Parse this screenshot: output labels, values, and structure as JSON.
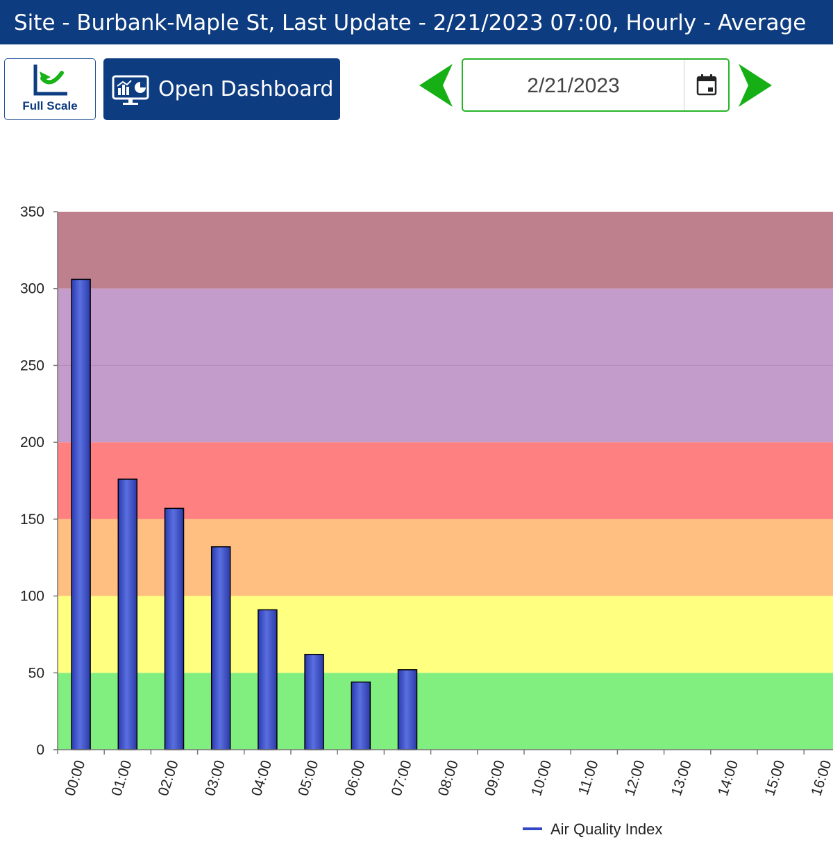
{
  "header": {
    "title": "Site - Burbank-Maple St, Last Update - 2/21/2023 07:00, Hourly - Average"
  },
  "toolbar": {
    "full_scale_label": "Full Scale",
    "dashboard_label": "Open Dashboard",
    "date_value": "2/21/2023",
    "icons": {
      "full_scale": "chart-reset-icon",
      "dashboard": "dashboard-monitor-icon",
      "prev": "arrow-left-icon",
      "next": "arrow-right-icon",
      "calendar": "calendar-icon"
    },
    "arrow_color": "#16b016"
  },
  "chart_data": {
    "type": "bar",
    "ylim": [
      0,
      350
    ],
    "yticks": [
      "0",
      "50",
      "100",
      "150",
      "200",
      "250",
      "300",
      "350"
    ],
    "categories": [
      "00:00",
      "01:00",
      "02:00",
      "03:00",
      "04:00",
      "05:00",
      "06:00",
      "07:00",
      "08:00",
      "09:00",
      "10:00",
      "11:00",
      "12:00",
      "13:00",
      "14:00",
      "15:00",
      "16:00"
    ],
    "series": [
      {
        "name": "Air Quality Index",
        "color": "#3347c4",
        "values": [
          306,
          176,
          157,
          132,
          91,
          62,
          44,
          52,
          null,
          null,
          null,
          null,
          null,
          null,
          null,
          null,
          null
        ]
      }
    ],
    "bands": [
      {
        "from": 0,
        "to": 50,
        "color": "#80ef80"
      },
      {
        "from": 50,
        "to": 100,
        "color": "#ffff80"
      },
      {
        "from": 100,
        "to": 150,
        "color": "#ffbf80"
      },
      {
        "from": 150,
        "to": 200,
        "color": "#ff8080"
      },
      {
        "from": 200,
        "to": 300,
        "color": "#c49ccb"
      },
      {
        "from": 300,
        "to": 350,
        "color": "#be808d"
      }
    ],
    "legend": {
      "position": "bottom-center"
    },
    "grid": false
  }
}
